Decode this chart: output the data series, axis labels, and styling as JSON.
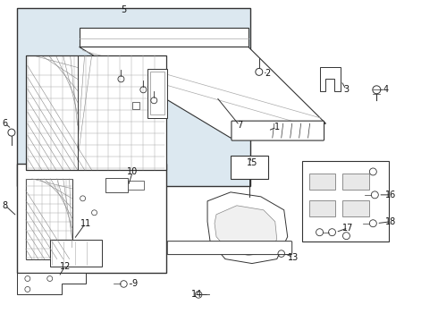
{
  "bg_color": "#ffffff",
  "light_bg": "#dce8f0",
  "line_color": "#333333",
  "fig_width": 4.9,
  "fig_height": 3.6,
  "dpi": 100
}
